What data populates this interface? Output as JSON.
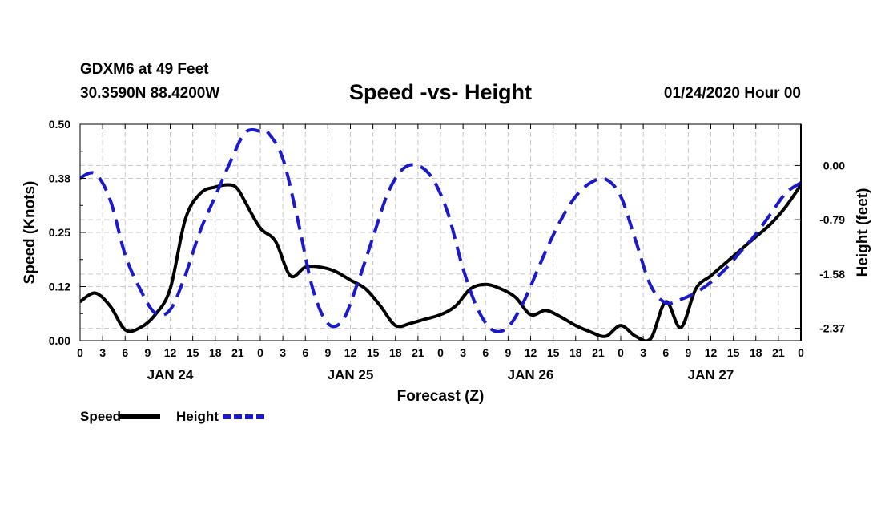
{
  "header": {
    "station": "GDXM6 at 49 Feet",
    "coords": "30.3590N 88.4200W",
    "title": "Speed -vs- Height",
    "date": "01/24/2020 Hour 00"
  },
  "chart_data": {
    "type": "line",
    "title": "Speed -vs- Height",
    "xlabel": "Forecast (Z)",
    "ylabel_left": "Speed (Knots)",
    "ylabel_right": "Height (feet)",
    "x_unit": "hours from 01/24/2020 00Z",
    "xlim": [
      0,
      96
    ],
    "ylim_left": [
      0,
      0.5
    ],
    "ylim_right": [
      -2.55,
      0.6
    ],
    "yticks_left": [
      "0.00",
      "0.12",
      "0.25",
      "0.38",
      "0.50"
    ],
    "yticks_left_values": [
      0,
      0.125,
      0.25,
      0.375,
      0.5
    ],
    "yticks_right": [
      "0.00",
      "-0.79",
      "-1.58",
      "-2.37"
    ],
    "yticks_right_values": [
      0,
      -0.79,
      -1.58,
      -2.37
    ],
    "xtick_labels": [
      "0",
      "3",
      "6",
      "9",
      "12",
      "15",
      "18",
      "21",
      "0",
      "3",
      "6",
      "9",
      "12",
      "15",
      "18",
      "21",
      "0",
      "3",
      "6",
      "9",
      "12",
      "15",
      "18",
      "21",
      "0",
      "3",
      "6",
      "9",
      "12",
      "15",
      "18",
      "21",
      "0"
    ],
    "day_labels": [
      {
        "label": "JAN 24",
        "x": 12
      },
      {
        "label": "JAN 25",
        "x": 36
      },
      {
        "label": "JAN 26",
        "x": 60
      },
      {
        "label": "JAN 27",
        "x": 84
      }
    ],
    "grid": true,
    "legend": [
      {
        "name": "Speed",
        "color": "#000000",
        "style": "solid"
      },
      {
        "name": "Height",
        "color": "#1a1acc",
        "style": "dashed"
      }
    ],
    "series": [
      {
        "name": "Speed",
        "axis": "left",
        "color": "#000000",
        "x": [
          0,
          2,
          4,
          6,
          8,
          10,
          12,
          14,
          16,
          18,
          20,
          21,
          22,
          24,
          26,
          28,
          30,
          32,
          34,
          36,
          38,
          40,
          42,
          44,
          46,
          48,
          50,
          52,
          54,
          56,
          58,
          60,
          62,
          64,
          66,
          68,
          70,
          72,
          74,
          76,
          78,
          80,
          82,
          84,
          86,
          88,
          90,
          92,
          94,
          96
        ],
        "y": [
          0.09,
          0.11,
          0.08,
          0.025,
          0.03,
          0.06,
          0.12,
          0.28,
          0.34,
          0.355,
          0.36,
          0.35,
          0.32,
          0.26,
          0.23,
          0.15,
          0.17,
          0.17,
          0.16,
          0.14,
          0.12,
          0.08,
          0.035,
          0.04,
          0.05,
          0.06,
          0.08,
          0.12,
          0.13,
          0.12,
          0.1,
          0.06,
          0.07,
          0.055,
          0.035,
          0.02,
          0.01,
          0.035,
          0.01,
          0.005,
          0.09,
          0.03,
          0.12,
          0.15,
          0.18,
          0.21,
          0.24,
          0.27,
          0.31,
          0.36
        ]
      },
      {
        "name": "Height",
        "axis": "right",
        "color": "#1a1acc",
        "x": [
          0,
          2,
          4,
          6,
          8,
          10,
          12,
          14,
          16,
          18,
          20,
          22,
          24,
          25,
          27,
          29,
          31,
          33,
          35,
          37,
          39,
          41,
          43,
          45,
          47,
          49,
          51,
          53,
          55,
          57,
          59,
          61,
          62,
          64,
          66,
          68,
          70,
          72,
          74,
          76,
          78,
          80,
          82,
          84,
          86,
          88,
          90,
          92,
          94,
          96
        ],
        "y": [
          -0.18,
          -0.12,
          -0.5,
          -1.3,
          -1.8,
          -2.15,
          -2.1,
          -1.6,
          -0.95,
          -0.45,
          0.05,
          0.48,
          0.5,
          0.48,
          0.1,
          -0.8,
          -1.8,
          -2.3,
          -2.25,
          -1.7,
          -1.05,
          -0.4,
          -0.05,
          0,
          -0.2,
          -0.7,
          -1.5,
          -2.1,
          -2.4,
          -2.35,
          -2.0,
          -1.5,
          -1.25,
          -0.8,
          -0.45,
          -0.25,
          -0.2,
          -0.45,
          -1.1,
          -1.75,
          -2.0,
          -1.95,
          -1.85,
          -1.7,
          -1.5,
          -1.25,
          -1.0,
          -0.7,
          -0.4,
          -0.25
        ]
      }
    ]
  }
}
